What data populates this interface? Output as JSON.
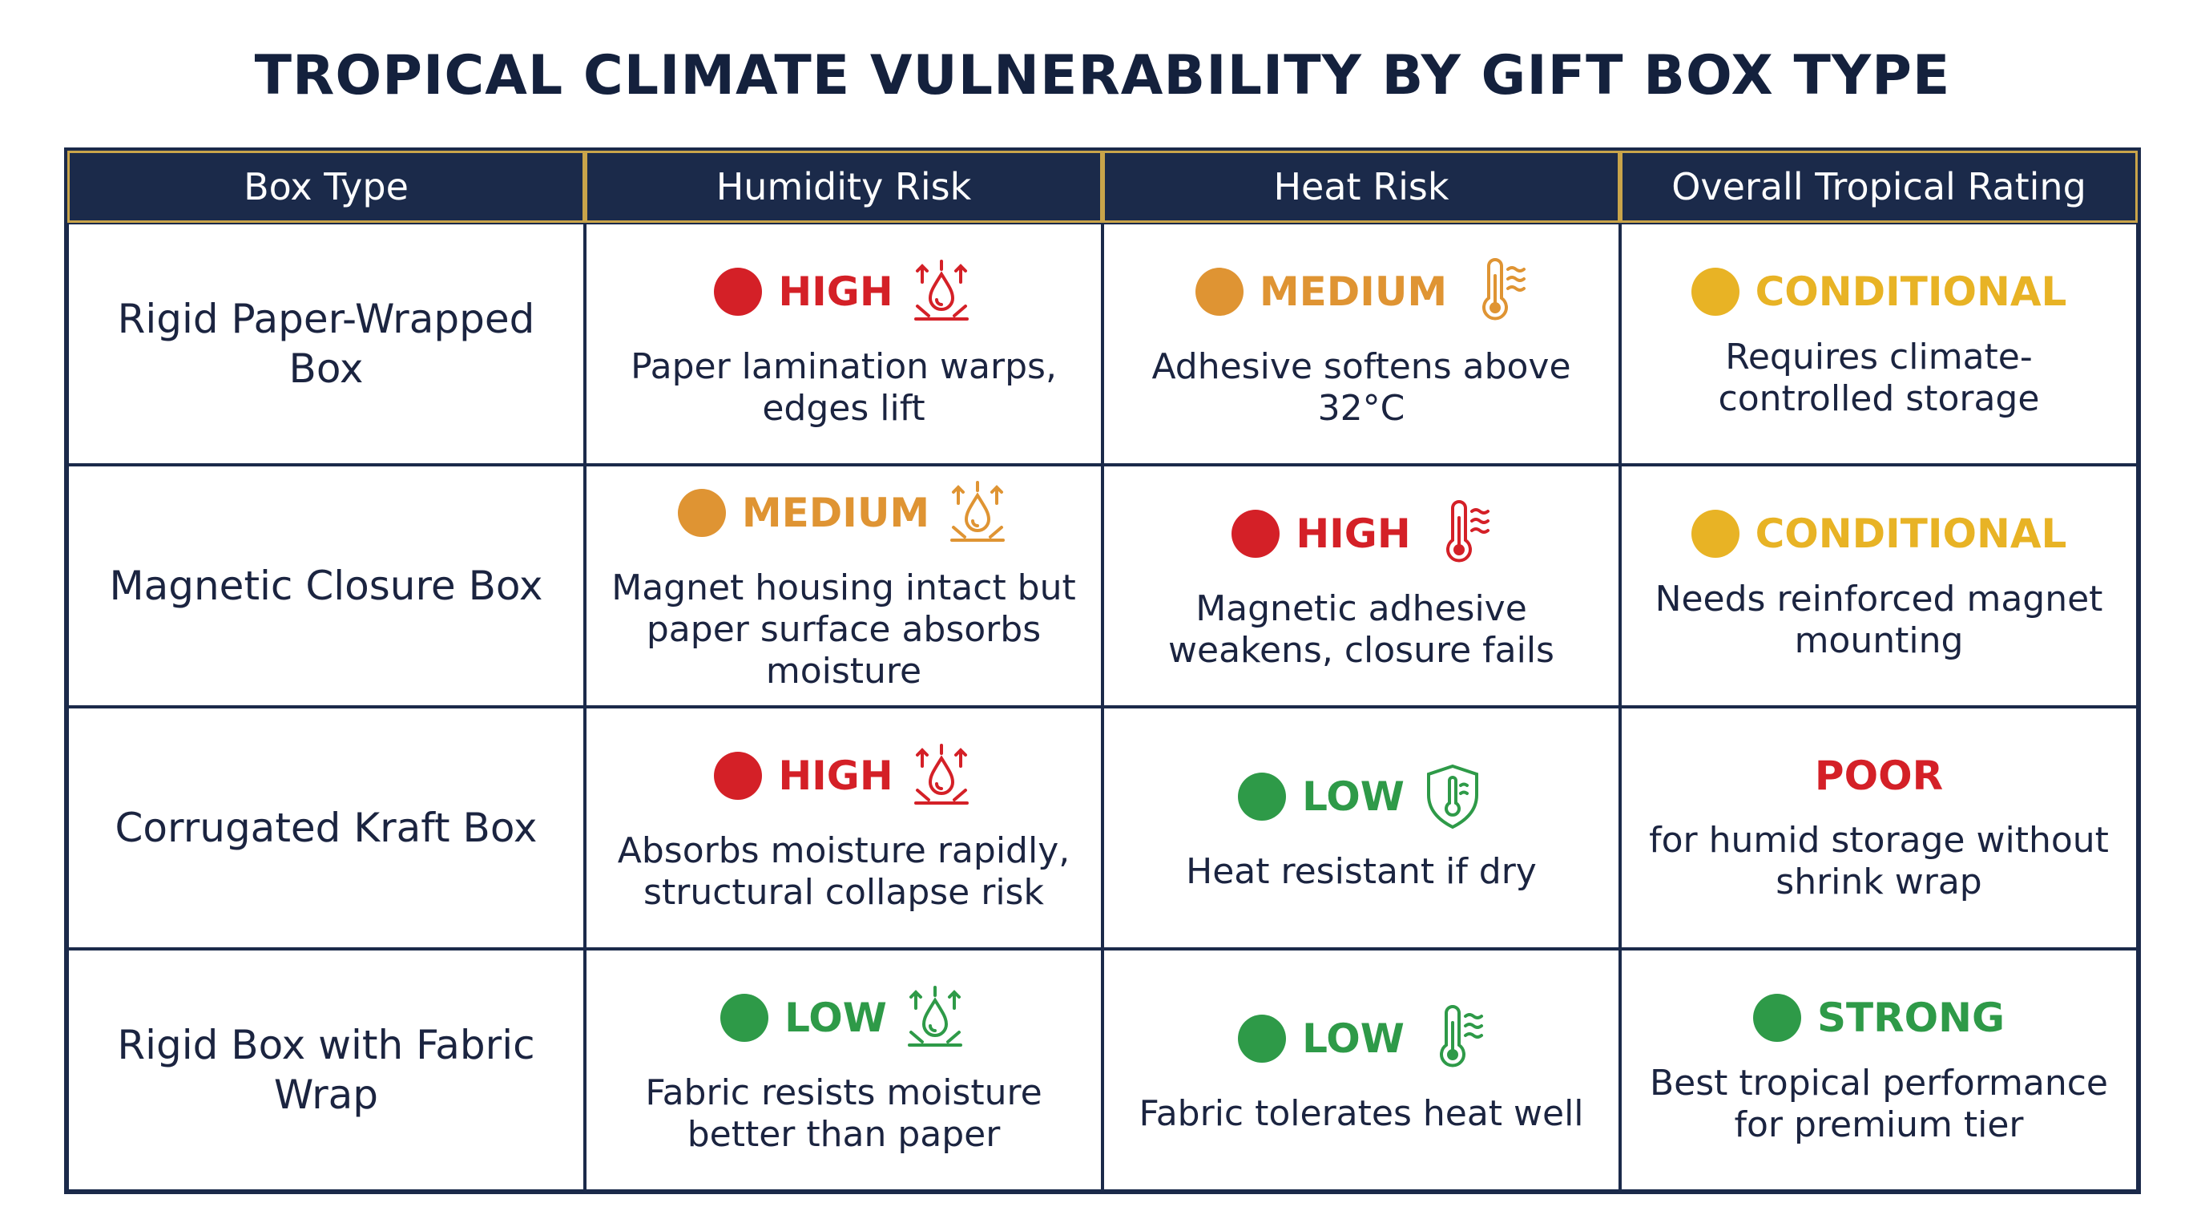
{
  "title": "TROPICAL CLIMATE VULNERABILITY BY GIFT BOX TYPE",
  "table": {
    "headers": [
      "Box Type",
      "Humidity Risk",
      "Heat Risk",
      "Overall Tropical Rating"
    ],
    "rows": [
      {
        "box_type": "Rigid Paper-Wrapped Box",
        "cells": [
          {
            "rating": "HIGH",
            "color": "#d42027",
            "note": "Paper lamination warps, edges lift"
          },
          {
            "rating": "MEDIUM",
            "color": "#df9433",
            "note": "Adhesive softens above 32°C"
          },
          {
            "rating": "CONDITIONAL",
            "color": "#e8b325",
            "note": "Requires climate-controlled storage"
          }
        ]
      },
      {
        "box_type": "Magnetic Closure Box",
        "cells": [
          {
            "rating": "MEDIUM",
            "color": "#df9433",
            "note": "Magnet housing intact but paper surface absorbs moisture"
          },
          {
            "rating": "HIGH",
            "color": "#d42027",
            "note": "Magnetic adhesive weakens, closure fails"
          },
          {
            "rating": "CONDITIONAL",
            "color": "#e8b325",
            "note": "Needs reinforced magnet mounting"
          }
        ]
      },
      {
        "box_type": "Corrugated Kraft Box",
        "cells": [
          {
            "rating": "HIGH",
            "color": "#d42027",
            "note": "Absorbs moisture rapidly, structural collapse risk"
          },
          {
            "rating": "LOW",
            "color": "#2e9a48",
            "note": "Heat resistant if dry"
          },
          {
            "rating": "POOR",
            "color": "#d42027",
            "note": "for humid storage without shrink wrap"
          }
        ]
      },
      {
        "box_type": "Rigid Box with Fabric Wrap",
        "cells": [
          {
            "rating": "LOW",
            "color": "#2e9a48",
            "note": "Fabric resists moisture better than paper"
          },
          {
            "rating": "LOW",
            "color": "#2e9a48",
            "note": "Fabric tolerates heat well"
          },
          {
            "rating": "STRONG",
            "color": "#2e9a48",
            "note": "Best tropical performance for premium tier"
          }
        ]
      }
    ]
  }
}
